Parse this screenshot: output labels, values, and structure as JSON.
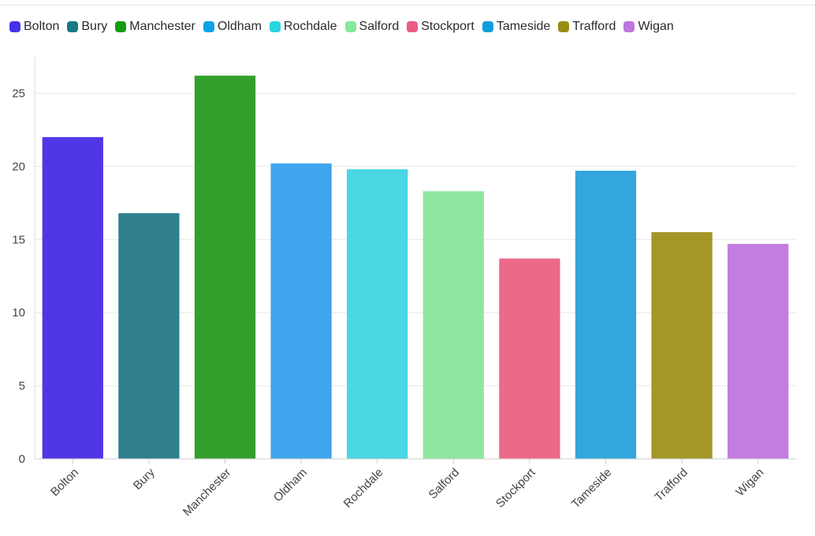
{
  "chart_data": {
    "type": "bar",
    "categories": [
      "Bolton",
      "Bury",
      "Manchester",
      "Oldham",
      "Rochdale",
      "Salford",
      "Stockport",
      "Tameside",
      "Trafford",
      "Wigan"
    ],
    "values": [
      22.0,
      16.8,
      26.2,
      20.2,
      19.8,
      18.3,
      13.7,
      19.7,
      15.5,
      14.7
    ],
    "colors": [
      "#4f37e6",
      "#2f7f8f",
      "#34a02c",
      "#3fa5ef",
      "#4ad6e2",
      "#8ee79e",
      "#ec6989",
      "#33a6de",
      "#a39727",
      "#c27de0"
    ],
    "legend_colors": [
      "#4433e8",
      "#187b83",
      "#139d10",
      "#0fa2e9",
      "#2bd5e0",
      "#85e89b",
      "#ea5a82",
      "#0e9edd",
      "#968d12",
      "#bd76dd"
    ],
    "legend": [
      "Bolton",
      "Bury",
      "Manchester",
      "Oldham",
      "Rochdale",
      "Salford",
      "Stockport",
      "Tameside",
      "Trafford",
      "Wigan"
    ],
    "legend_position": "top-left",
    "ylim": [
      0,
      27.5
    ],
    "yticks": [
      0,
      5,
      10,
      15,
      20,
      25
    ],
    "grid": true,
    "title": "",
    "xlabel": "",
    "ylabel": ""
  }
}
